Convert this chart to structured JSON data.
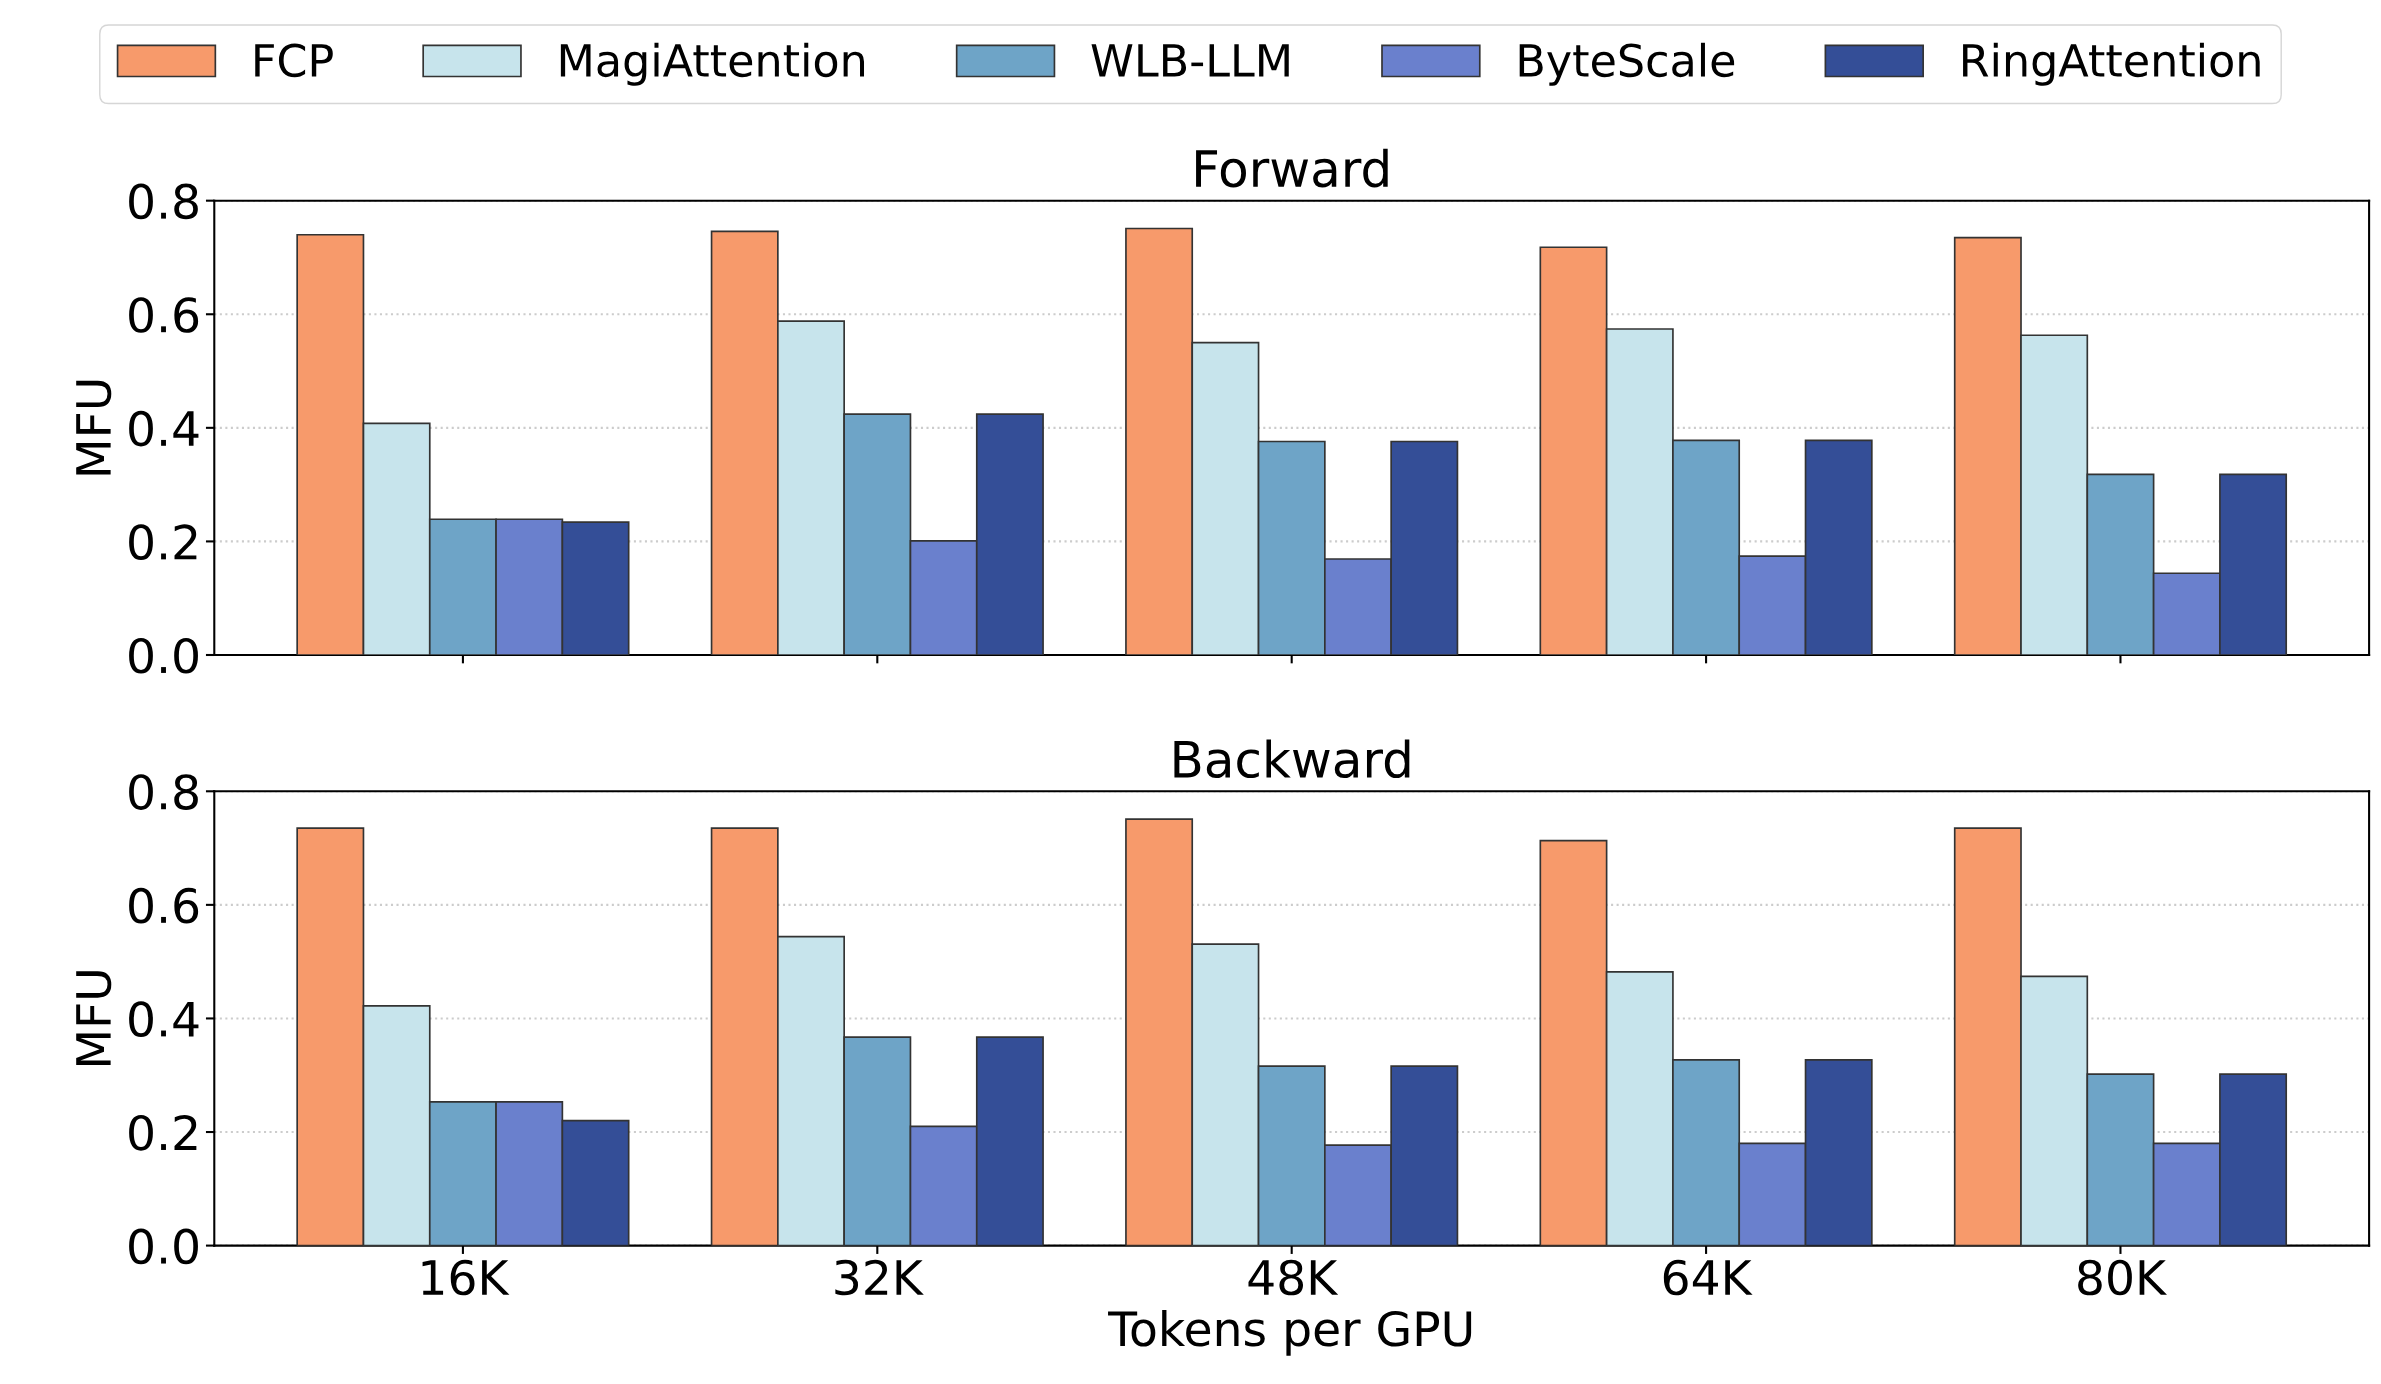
{
  "chart_data": [
    {
      "type": "bar",
      "title": "Forward",
      "ylabel": "MFU",
      "categories": [
        null,
        null,
        null,
        null,
        null
      ],
      "ylim": [
        0,
        0.8
      ],
      "yticks": [
        {
          "value": 0,
          "label": "0.0"
        },
        0.2,
        0.4,
        0.6,
        0.8
      ],
      "grid": "y",
      "legend": "top",
      "tick_labels": "y",
      "series": [
        {
          "name": "FCP",
          "color": "#f79a6b",
          "values": [
            0.74,
            0.746,
            0.751,
            0.718,
            0.735
          ]
        },
        {
          "name": "MagiAttention",
          "color": "#c7e4ec",
          "values": [
            0.408,
            0.588,
            0.55,
            0.574,
            0.563
          ]
        },
        {
          "name": "WLB-LLM",
          "color": "#6ea4c7",
          "values": [
            0.239,
            0.424,
            0.376,
            0.378,
            0.318
          ]
        },
        {
          "name": "ByteScale",
          "color": "#6a80cd",
          "values": [
            0.239,
            0.201,
            0.169,
            0.174,
            0.144
          ]
        },
        {
          "name": "RingAttention",
          "color": "#344e97",
          "values": [
            0.234,
            0.424,
            0.376,
            0.378,
            0.318
          ]
        }
      ]
    },
    {
      "type": "bar",
      "title": "Backward",
      "ylabel": "MFU",
      "xlabel": "Tokens per GPU",
      "categories": [
        "16K",
        "32K",
        "48K",
        "64K",
        "80K"
      ],
      "ylim": [
        0,
        0.8
      ],
      "yticks": [
        {
          "value": 0,
          "label": "0.0"
        },
        0.2,
        0.4,
        0.6,
        0.8
      ],
      "grid": "y",
      "series": [
        {
          "color": "#f79a6b",
          "values": [
            0.735,
            0.735,
            0.751,
            0.713,
            0.735
          ]
        },
        {
          "color": "#c7e4ec",
          "values": [
            0.422,
            0.544,
            0.531,
            0.482,
            0.474
          ]
        },
        {
          "color": "#6ea4c7",
          "values": [
            0.253,
            0.367,
            0.316,
            0.327,
            0.302
          ]
        },
        {
          "color": "#6a80cd",
          "values": [
            0.253,
            0.21,
            0.177,
            0.18,
            0.18
          ]
        },
        {
          "color": "#344e97",
          "values": [
            0.22,
            0.367,
            0.316,
            0.327,
            0.302
          ]
        }
      ]
    }
  ]
}
